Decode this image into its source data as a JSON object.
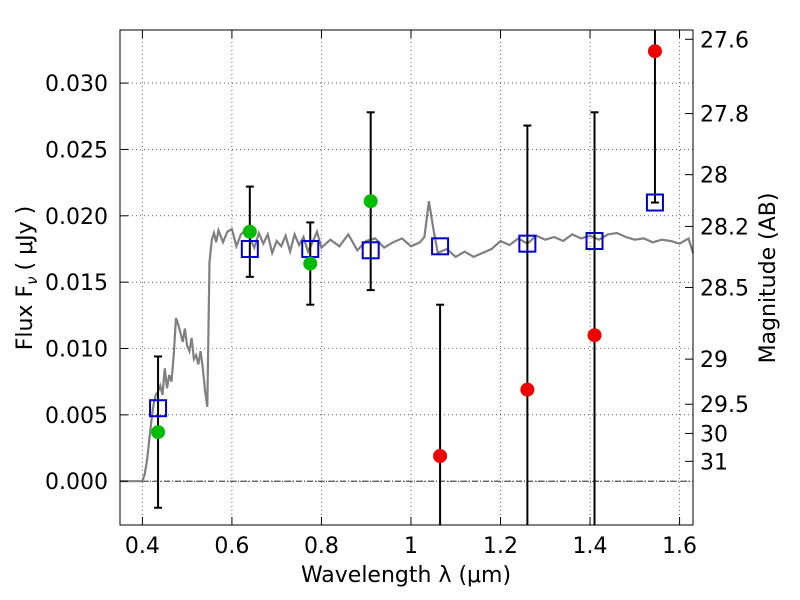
{
  "chart_data": {
    "type": "scatter",
    "xlabel": "Wavelength  λ (μm)",
    "ylabel": "Flux  F",
    "ylabel_sub": "ν",
    "ylabel_unit": "(  μJy  )",
    "y2label": "Magnitude (AB)",
    "xlim": [
      0.35,
      1.63
    ],
    "ylim": [
      -0.0033,
      0.034
    ],
    "grid": true,
    "x_ticks": [
      0.4,
      0.6,
      0.8,
      1.0,
      1.2,
      1.4,
      1.6
    ],
    "x_tick_labels": [
      "0.4",
      "0.6",
      "0.8",
      "1",
      "1.2",
      "1.4",
      "1.6"
    ],
    "y_ticks": [
      0.0,
      0.005,
      0.01,
      0.015,
      0.02,
      0.025,
      0.03
    ],
    "y_tick_labels": [
      "0.000",
      "0.005",
      "0.010",
      "0.015",
      "0.020",
      "0.025",
      "0.030"
    ],
    "y2_ticks": [
      {
        "label": "27.6",
        "flux": 0.0333
      },
      {
        "label": "27.8",
        "flux": 0.0277
      },
      {
        "label": "28",
        "flux": 0.0231
      },
      {
        "label": "28.2",
        "flux": 0.0192
      },
      {
        "label": "28.5",
        "flux": 0.0146
      },
      {
        "label": "29",
        "flux": 0.0092
      },
      {
        "label": "29.5",
        "flux": 0.0058
      },
      {
        "label": "30",
        "flux": 0.0036
      },
      {
        "label": "31",
        "flux": 0.0015
      }
    ],
    "model_sed": {
      "color": "#808080",
      "x": [
        0.35,
        0.4,
        0.405,
        0.41,
        0.415,
        0.42,
        0.425,
        0.43,
        0.435,
        0.44,
        0.445,
        0.45,
        0.455,
        0.46,
        0.465,
        0.47,
        0.475,
        0.48,
        0.485,
        0.49,
        0.495,
        0.5,
        0.505,
        0.51,
        0.515,
        0.52,
        0.525,
        0.53,
        0.535,
        0.54,
        0.545,
        0.55,
        0.555,
        0.56,
        0.565,
        0.57,
        0.58,
        0.59,
        0.6,
        0.61,
        0.62,
        0.63,
        0.64,
        0.65,
        0.66,
        0.67,
        0.68,
        0.69,
        0.7,
        0.71,
        0.72,
        0.73,
        0.74,
        0.75,
        0.76,
        0.77,
        0.78,
        0.79,
        0.8,
        0.82,
        0.84,
        0.86,
        0.88,
        0.9,
        0.92,
        0.94,
        0.96,
        0.98,
        1.0,
        1.02,
        1.03,
        1.04,
        1.05,
        1.06,
        1.08,
        1.1,
        1.12,
        1.14,
        1.16,
        1.18,
        1.2,
        1.22,
        1.24,
        1.26,
        1.28,
        1.3,
        1.32,
        1.34,
        1.36,
        1.38,
        1.4,
        1.42,
        1.44,
        1.46,
        1.48,
        1.5,
        1.52,
        1.54,
        1.56,
        1.58,
        1.6,
        1.62,
        1.63
      ],
      "y": [
        0.0,
        0.0,
        0.0005,
        0.0015,
        0.003,
        0.0045,
        0.0058,
        0.0065,
        0.0068,
        0.0072,
        0.0065,
        0.0085,
        0.007,
        0.008,
        0.0075,
        0.0095,
        0.0123,
        0.0118,
        0.0112,
        0.0105,
        0.0115,
        0.0102,
        0.0098,
        0.0108,
        0.0092,
        0.0095,
        0.0088,
        0.0098,
        0.0085,
        0.0068,
        0.0056,
        0.0165,
        0.0182,
        0.0187,
        0.018,
        0.0189,
        0.018,
        0.0188,
        0.019,
        0.0177,
        0.0186,
        0.0189,
        0.0183,
        0.0176,
        0.0187,
        0.0179,
        0.0186,
        0.0172,
        0.0181,
        0.0177,
        0.0185,
        0.0173,
        0.0186,
        0.0178,
        0.0184,
        0.0173,
        0.018,
        0.0188,
        0.0176,
        0.0182,
        0.0177,
        0.0186,
        0.0174,
        0.0181,
        0.0183,
        0.0176,
        0.018,
        0.0183,
        0.0177,
        0.018,
        0.0184,
        0.0211,
        0.019,
        0.0172,
        0.0175,
        0.0169,
        0.0173,
        0.0169,
        0.0172,
        0.0175,
        0.0181,
        0.0178,
        0.0183,
        0.0179,
        0.0185,
        0.0182,
        0.0184,
        0.0181,
        0.0186,
        0.0183,
        0.0185,
        0.0182,
        0.0186,
        0.0187,
        0.0184,
        0.0182,
        0.0183,
        0.018,
        0.0182,
        0.0181,
        0.0179,
        0.0183,
        0.0172
      ]
    },
    "model_fluxes": {
      "color": "#0000cc",
      "points": [
        {
          "x": 0.435,
          "y": 0.0055
        },
        {
          "x": 0.64,
          "y": 0.0175
        },
        {
          "x": 0.775,
          "y": 0.0175
        },
        {
          "x": 0.91,
          "y": 0.0174
        },
        {
          "x": 1.065,
          "y": 0.0177
        },
        {
          "x": 1.26,
          "y": 0.0179
        },
        {
          "x": 1.41,
          "y": 0.0181
        },
        {
          "x": 1.545,
          "y": 0.021
        }
      ]
    },
    "detections": {
      "color": "#00bb00",
      "points": [
        {
          "x": 0.435,
          "y": 0.0037,
          "err": 0.0057
        },
        {
          "x": 0.64,
          "y": 0.0188,
          "err": 0.0034
        },
        {
          "x": 0.775,
          "y": 0.0164,
          "err": 0.0031
        },
        {
          "x": 0.91,
          "y": 0.0211,
          "err": 0.0067
        }
      ]
    },
    "non_detections": {
      "color": "#ee0000",
      "points": [
        {
          "x": 1.065,
          "y": 0.0019,
          "err": 0.0114
        },
        {
          "x": 1.26,
          "y": 0.0069,
          "err": 0.0199
        },
        {
          "x": 1.41,
          "y": 0.011,
          "err": 0.0168
        },
        {
          "x": 1.545,
          "y": 0.0324,
          "err": 0.0114
        }
      ]
    }
  }
}
